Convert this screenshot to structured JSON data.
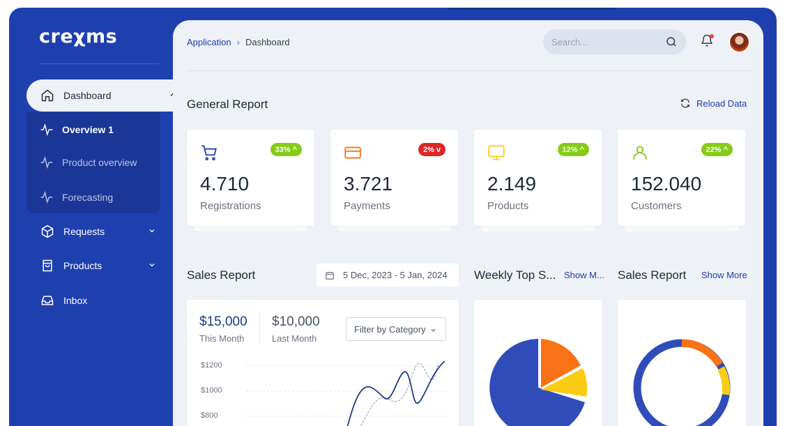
{
  "app": {
    "logo": "creχms"
  },
  "sidebar": {
    "items": [
      {
        "label": "Dashboard",
        "icon": "home-icon",
        "expanded": true
      },
      {
        "label": "Requests",
        "icon": "box-icon",
        "expanded": false
      },
      {
        "label": "Products",
        "icon": "bag-icon",
        "expanded": false
      },
      {
        "label": "Inbox",
        "icon": "inbox-icon"
      }
    ],
    "sub_items": [
      {
        "label": "Overview 1",
        "icon": "activity-icon",
        "active": true
      },
      {
        "label": "Product overview",
        "icon": "activity-icon",
        "active": false
      },
      {
        "label": "Forecasting",
        "icon": "activity-icon",
        "active": false
      }
    ]
  },
  "header": {
    "breadcrumb": [
      "Application",
      "Dashboard"
    ],
    "search_placeholder": "Search..."
  },
  "general_report": {
    "title": "General Report",
    "reload_label": "Reload Data",
    "stats": [
      {
        "value": "4.710",
        "label": "Registrations",
        "badge": "33%",
        "trend": "up",
        "icon": "cart-icon",
        "color": "#1e40af"
      },
      {
        "value": "3.721",
        "label": "Payments",
        "badge": "2%",
        "trend": "down",
        "icon": "credit-card-icon",
        "color": "#f97316"
      },
      {
        "value": "2.149",
        "label": "Products",
        "badge": "12%",
        "trend": "up",
        "icon": "monitor-icon",
        "color": "#facc15"
      },
      {
        "value": "152.040",
        "label": "Customers",
        "badge": "22%",
        "trend": "up",
        "icon": "user-icon",
        "color": "#84cc16"
      }
    ]
  },
  "sales_report": {
    "title": "Sales Report",
    "date_range": "5 Dec, 2023 - 5 Jan, 2024",
    "this_month_value": "$15,000",
    "this_month_label": "This Month",
    "last_month_value": "$10,000",
    "last_month_label": "Last Month",
    "filter_label": "Filter by Category",
    "y_ticks": [
      "$1200",
      "$1000",
      "$800"
    ]
  },
  "weekly_top": {
    "title": "Weekly Top S...",
    "show_more": "Show M..."
  },
  "sales_report_2": {
    "title": "Sales Report",
    "show_more": "Show More"
  },
  "colors": {
    "brand": "#1e40af",
    "orange": "#f97316",
    "yellow": "#facc15",
    "green": "#84cc16",
    "red": "#dc2626"
  }
}
